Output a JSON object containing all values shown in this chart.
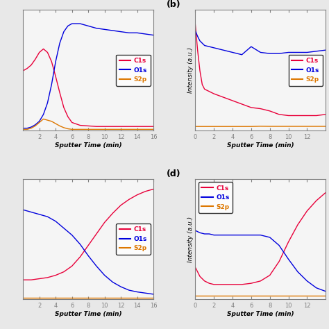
{
  "title_b": "(b)",
  "title_d": "(d)",
  "xlabel": "Sputter Time (min)",
  "ylabel_right": "Intensity (a.u.)",
  "legend_labels": [
    "C1s",
    "O1s",
    "S2p"
  ],
  "colors": {
    "C1s": "#e8003a",
    "O1s": "#0000dd",
    "S2p": "#dd7700"
  },
  "fig_bg": "#e8e8e8",
  "panel_bg": "#f5f5f5",
  "panel_a": {
    "xmax": 16,
    "xticks": [
      2,
      4,
      6,
      8,
      10,
      12,
      14,
      16
    ],
    "C1s_x": [
      0,
      0.5,
      1.0,
      1.5,
      2.0,
      2.5,
      3.0,
      3.5,
      4.0,
      4.5,
      5.0,
      5.5,
      6.0,
      7.0,
      8.0,
      9.0,
      10.0,
      11.0,
      12.0,
      13.0,
      14.0,
      15.0,
      16.0
    ],
    "C1s_y": [
      0.52,
      0.54,
      0.57,
      0.62,
      0.68,
      0.71,
      0.68,
      0.6,
      0.47,
      0.33,
      0.2,
      0.12,
      0.07,
      0.045,
      0.04,
      0.035,
      0.035,
      0.035,
      0.035,
      0.035,
      0.035,
      0.035,
      0.035
    ],
    "O1s_x": [
      0,
      0.5,
      1.0,
      1.5,
      2.0,
      2.5,
      3.0,
      3.5,
      4.0,
      4.5,
      5.0,
      5.5,
      6.0,
      7.0,
      8.0,
      9.0,
      10.0,
      11.0,
      12.0,
      13.0,
      14.0,
      15.0,
      16.0
    ],
    "O1s_y": [
      0.02,
      0.02,
      0.03,
      0.05,
      0.08,
      0.14,
      0.24,
      0.4,
      0.6,
      0.76,
      0.86,
      0.91,
      0.93,
      0.93,
      0.91,
      0.89,
      0.88,
      0.87,
      0.86,
      0.85,
      0.85,
      0.84,
      0.83
    ],
    "S2p_x": [
      0,
      0.5,
      1.0,
      1.5,
      2.0,
      2.5,
      3.0,
      3.5,
      4.0,
      4.5,
      5.0,
      5.5,
      6.0,
      7.0,
      8.0,
      9.0,
      10.0,
      11.0,
      12.0,
      13.0,
      14.0,
      15.0,
      16.0
    ],
    "S2p_y": [
      0.01,
      0.01,
      0.02,
      0.04,
      0.07,
      0.1,
      0.09,
      0.08,
      0.06,
      0.04,
      0.025,
      0.015,
      0.01,
      0.01,
      0.01,
      0.01,
      0.01,
      0.01,
      0.01,
      0.01,
      0.01,
      0.01,
      0.01
    ],
    "legend_loc": "center right"
  },
  "panel_b": {
    "xmax": 14,
    "xticks": [
      0,
      2,
      4,
      6,
      8,
      10,
      12
    ],
    "C1s_x": [
      0,
      0.25,
      0.5,
      0.75,
      1.0,
      1.5,
      2.0,
      3.0,
      4.0,
      5.0,
      6.0,
      7.0,
      8.0,
      9.0,
      10.0,
      11.0,
      12.0,
      13.0,
      14.0
    ],
    "C1s_y": [
      0.93,
      0.7,
      0.52,
      0.4,
      0.36,
      0.34,
      0.32,
      0.29,
      0.26,
      0.23,
      0.2,
      0.19,
      0.17,
      0.14,
      0.13,
      0.13,
      0.13,
      0.13,
      0.14
    ],
    "O1s_x": [
      0,
      0.25,
      0.5,
      0.75,
      1.0,
      1.5,
      2.0,
      3.0,
      4.0,
      5.0,
      6.0,
      7.0,
      8.0,
      9.0,
      10.0,
      11.0,
      12.0,
      13.0,
      14.0
    ],
    "O1s_y": [
      0.87,
      0.82,
      0.78,
      0.76,
      0.74,
      0.73,
      0.72,
      0.7,
      0.68,
      0.66,
      0.73,
      0.68,
      0.67,
      0.67,
      0.68,
      0.68,
      0.68,
      0.69,
      0.7
    ],
    "S2p_x": [
      0,
      0.25,
      0.5,
      0.75,
      1.0,
      1.5,
      2.0,
      3.0,
      4.0,
      5.0,
      6.0,
      7.0,
      8.0,
      9.0,
      10.0,
      11.0,
      12.0,
      13.0,
      14.0
    ],
    "S2p_y": [
      0.035,
      0.035,
      0.035,
      0.035,
      0.035,
      0.035,
      0.035,
      0.035,
      0.035,
      0.035,
      0.035,
      0.037,
      0.036,
      0.036,
      0.036,
      0.036,
      0.036,
      0.036,
      0.036
    ],
    "legend_loc": "center right"
  },
  "panel_c": {
    "xmax": 16,
    "xticks": [
      2,
      4,
      6,
      8,
      10,
      12,
      14,
      16
    ],
    "C1s_x": [
      0,
      0.5,
      1,
      2,
      3,
      4,
      5,
      6,
      7,
      8,
      9,
      10,
      11,
      12,
      13,
      14,
      15,
      16
    ],
    "C1s_y": [
      0.17,
      0.17,
      0.17,
      0.18,
      0.19,
      0.21,
      0.24,
      0.29,
      0.37,
      0.47,
      0.57,
      0.67,
      0.75,
      0.82,
      0.87,
      0.91,
      0.94,
      0.96
    ],
    "O1s_x": [
      0,
      0.5,
      1,
      2,
      3,
      4,
      5,
      6,
      7,
      8,
      9,
      10,
      11,
      12,
      13,
      14,
      15,
      16
    ],
    "O1s_y": [
      0.78,
      0.77,
      0.76,
      0.74,
      0.72,
      0.68,
      0.62,
      0.56,
      0.48,
      0.38,
      0.29,
      0.21,
      0.15,
      0.11,
      0.08,
      0.065,
      0.055,
      0.045
    ],
    "S2p_x": [
      0,
      0.5,
      1,
      2,
      3,
      4,
      5,
      6,
      7,
      8,
      9,
      10,
      11,
      12,
      13,
      14,
      15,
      16
    ],
    "S2p_y": [
      0.015,
      0.015,
      0.015,
      0.015,
      0.015,
      0.015,
      0.015,
      0.015,
      0.015,
      0.015,
      0.015,
      0.015,
      0.015,
      0.015,
      0.015,
      0.015,
      0.015,
      0.015
    ],
    "legend_loc": "center right"
  },
  "panel_d": {
    "xmax": 14,
    "xticks": [
      0,
      2,
      4,
      6,
      8,
      10,
      12
    ],
    "C1s_x": [
      0,
      0.5,
      1.0,
      1.5,
      2.0,
      3.0,
      4.0,
      5.0,
      6.0,
      7.0,
      8.0,
      9.0,
      10.0,
      11.0,
      12.0,
      13.0,
      14.0
    ],
    "C1s_y": [
      0.28,
      0.2,
      0.16,
      0.14,
      0.13,
      0.13,
      0.13,
      0.13,
      0.14,
      0.16,
      0.21,
      0.33,
      0.5,
      0.65,
      0.77,
      0.86,
      0.93
    ],
    "O1s_x": [
      0,
      0.5,
      1.0,
      1.5,
      2.0,
      3.0,
      4.0,
      5.0,
      6.0,
      7.0,
      8.0,
      9.0,
      10.0,
      11.0,
      12.0,
      13.0,
      14.0
    ],
    "O1s_y": [
      0.6,
      0.58,
      0.57,
      0.57,
      0.56,
      0.56,
      0.56,
      0.56,
      0.56,
      0.56,
      0.54,
      0.47,
      0.35,
      0.24,
      0.16,
      0.1,
      0.07
    ],
    "S2p_x": [
      0,
      0.5,
      1.0,
      1.5,
      2.0,
      3.0,
      4.0,
      5.0,
      6.0,
      7.0,
      8.0,
      9.0,
      10.0,
      11.0,
      12.0,
      13.0,
      14.0
    ],
    "S2p_y": [
      0.035,
      0.035,
      0.035,
      0.035,
      0.035,
      0.035,
      0.035,
      0.035,
      0.035,
      0.035,
      0.035,
      0.035,
      0.035,
      0.035,
      0.035,
      0.035,
      0.035
    ],
    "legend_loc": "upper left"
  }
}
